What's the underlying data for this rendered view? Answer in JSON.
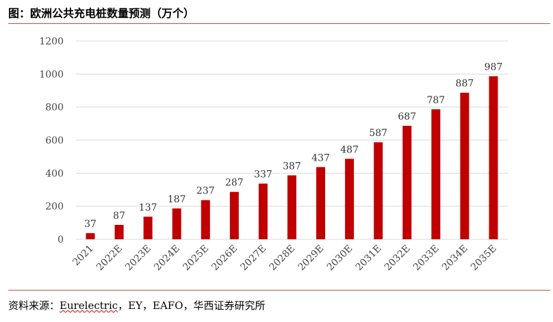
{
  "header": {
    "title": "图：欧洲公共充电桩数量预测（万个）"
  },
  "footer": {
    "source_prefix": "资料来源：",
    "source_main": "Eurelectric",
    "source_rest": "，EY，EAFO，华西证券研究所"
  },
  "colors": {
    "bar": "#c00000",
    "gridline": "#d9d9d9",
    "rule": "#c0504d"
  },
  "chart_data": {
    "type": "bar",
    "title": "欧洲公共充电桩数量预测（万个）",
    "xlabel": "",
    "ylabel": "",
    "categories": [
      "2021",
      "2022E",
      "2023E",
      "2024E",
      "2025E",
      "2026E",
      "2027E",
      "2028E",
      "2029E",
      "2030E",
      "2031E",
      "2032E",
      "2033E",
      "2034E",
      "2035E"
    ],
    "values": [
      37,
      87,
      137,
      187,
      237,
      287,
      337,
      387,
      437,
      487,
      587,
      687,
      787,
      887,
      987
    ],
    "data_labels": [
      "37",
      "87",
      "137",
      "187",
      "237",
      "287",
      "337",
      "387",
      "437",
      "487",
      "587",
      "687",
      "787",
      "887",
      "987"
    ],
    "ylim": [
      0,
      1200
    ],
    "yticks": [
      0,
      200,
      400,
      600,
      800,
      1000,
      1200
    ],
    "ytick_labels": [
      "0",
      "200",
      "400",
      "600",
      "800",
      "1000",
      "1200"
    ],
    "grid": true,
    "legend": "none"
  }
}
